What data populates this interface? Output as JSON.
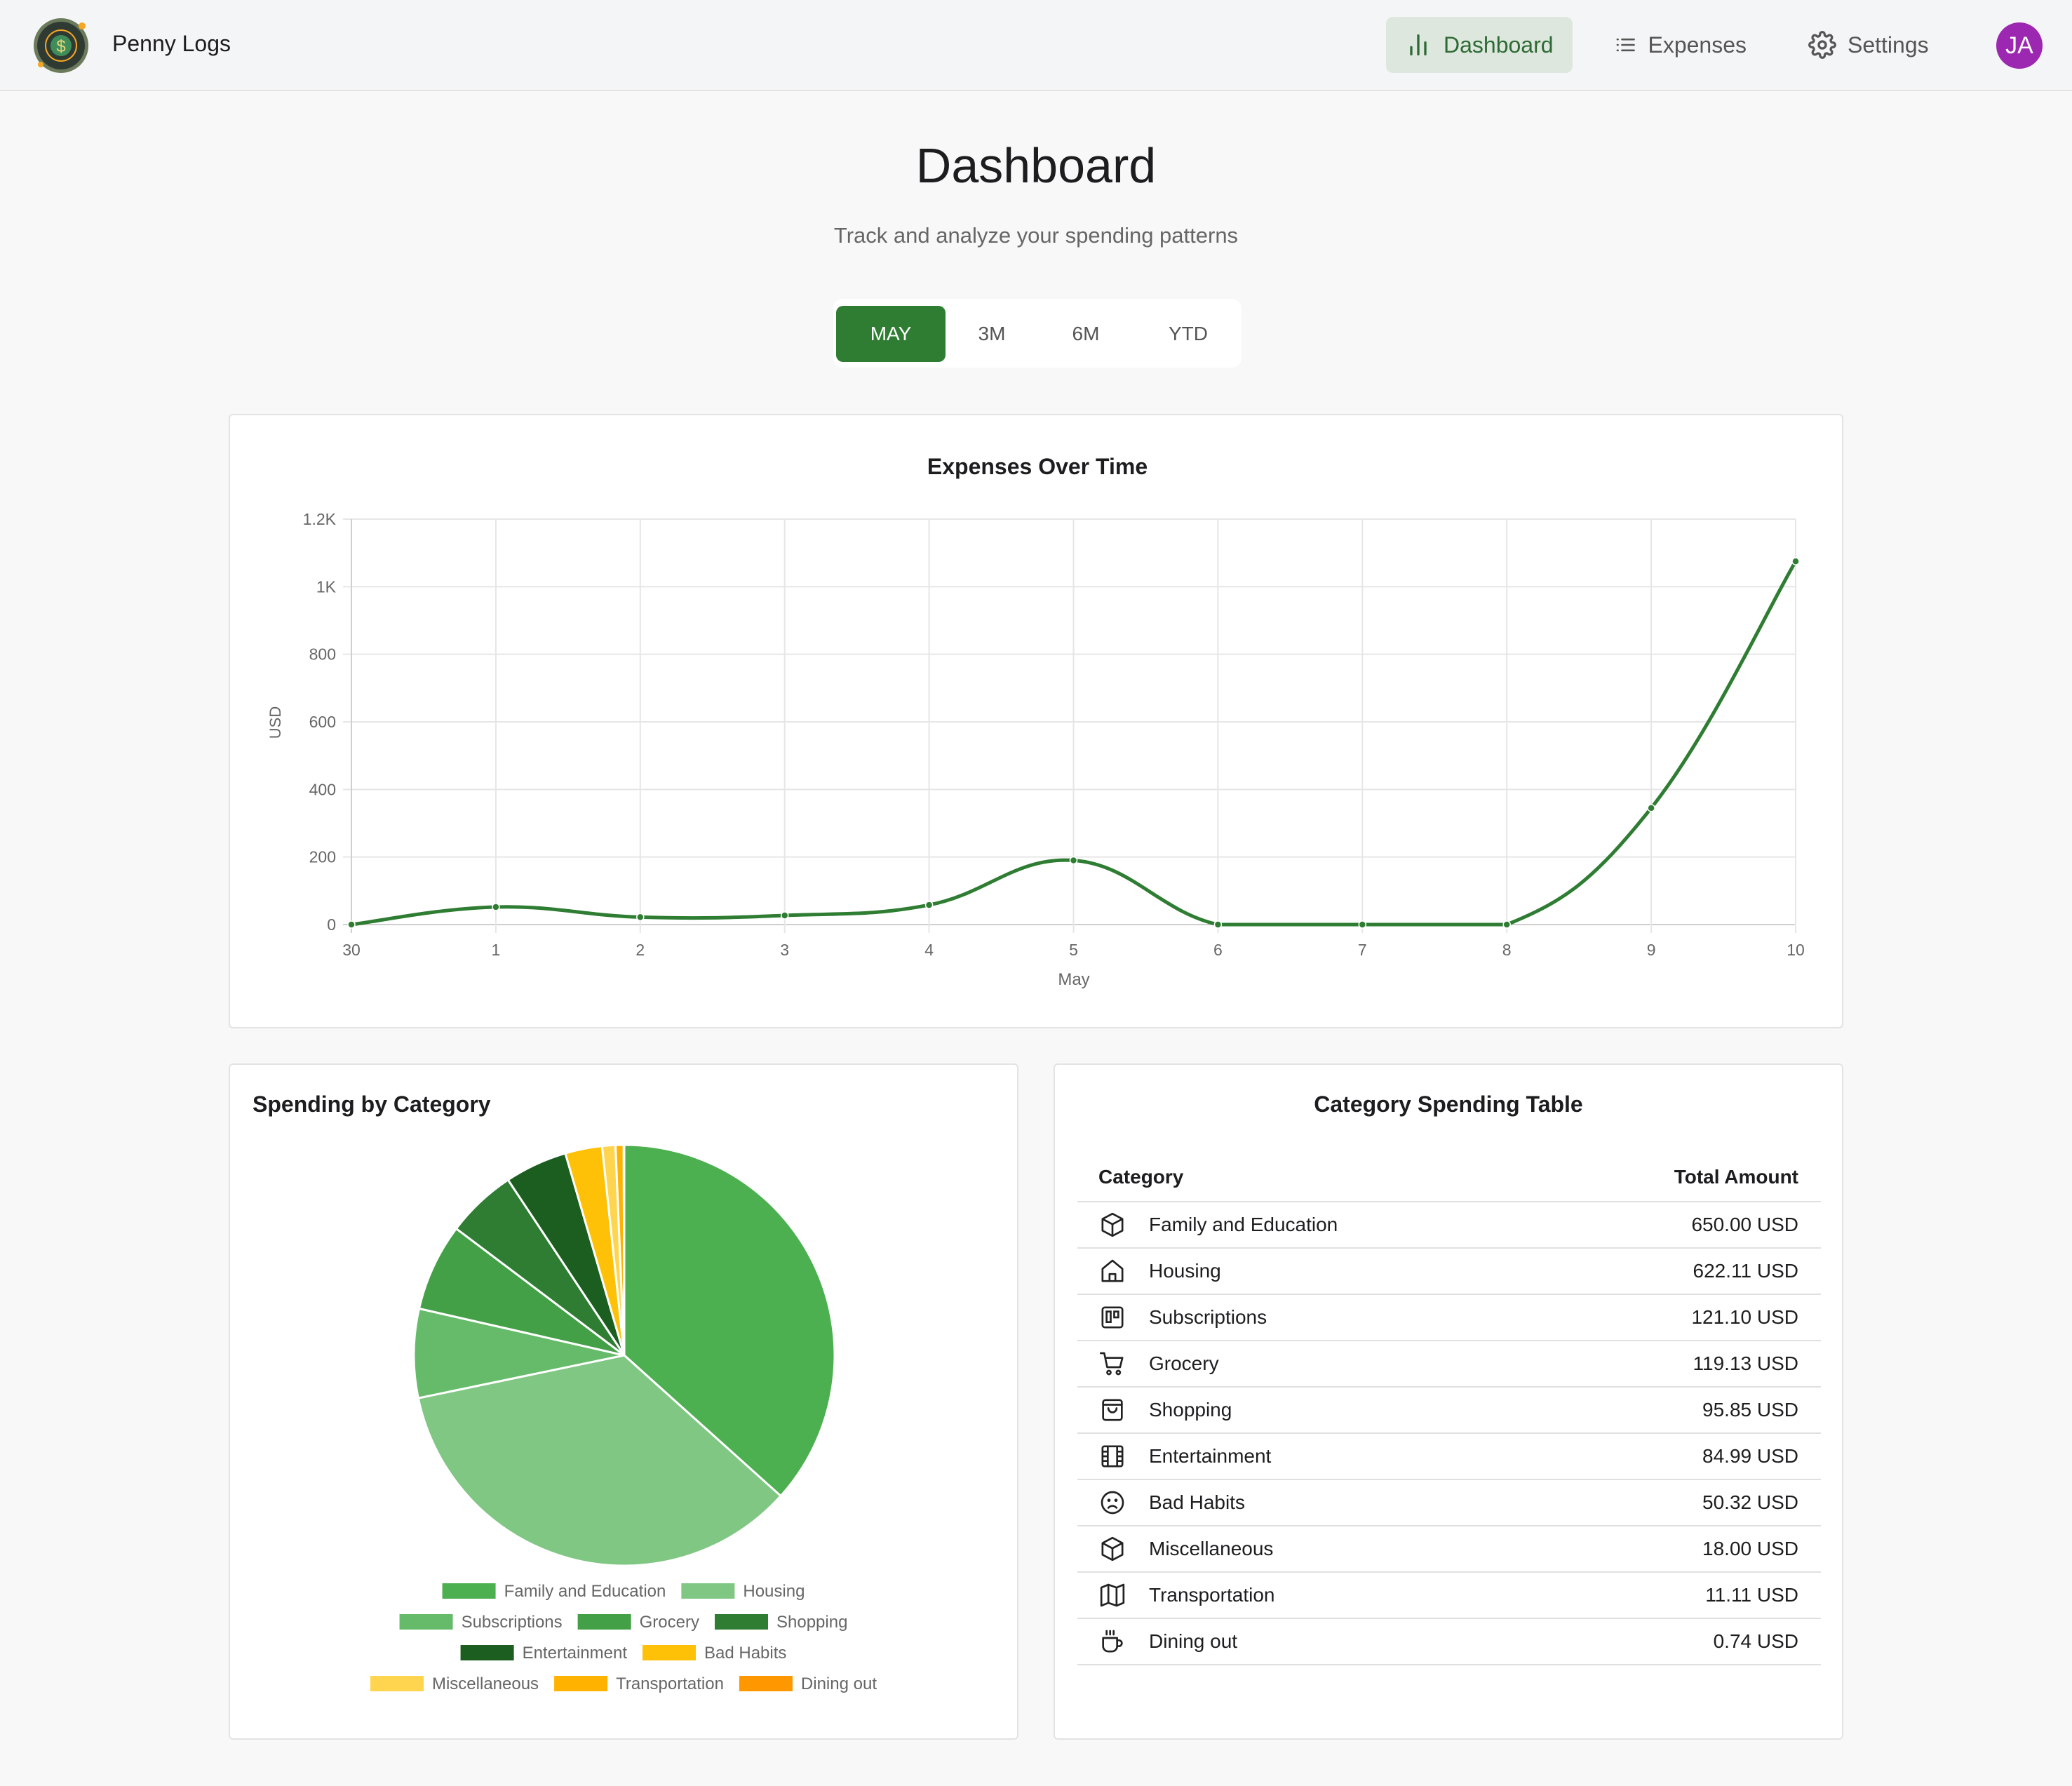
{
  "app": {
    "name": "Penny Logs"
  },
  "nav": [
    {
      "label": "Dashboard",
      "icon": "bar-chart-icon",
      "active": true
    },
    {
      "label": "Expenses",
      "icon": "list-icon",
      "active": false
    },
    {
      "label": "Settings",
      "icon": "gear-icon",
      "active": false
    }
  ],
  "user": {
    "initials": "JA",
    "color": "#9c27b0"
  },
  "page": {
    "title": "Dashboard",
    "subtitle": "Track and analyze your spending patterns"
  },
  "ranges": [
    {
      "label": "MAY",
      "active": true
    },
    {
      "label": "3M",
      "active": false
    },
    {
      "label": "6M",
      "active": false
    },
    {
      "label": "YTD",
      "active": false
    }
  ],
  "line_chart": {
    "title": "Expenses Over Time",
    "chart_data": {
      "type": "line",
      "x": [
        "30",
        "1",
        "2",
        "3",
        "4",
        "5",
        "6",
        "7",
        "8",
        "9",
        "10"
      ],
      "values": [
        0,
        52,
        22,
        27,
        58,
        190,
        0,
        0,
        0,
        345,
        1075
      ],
      "xlabel": "May",
      "ylabel": "USD",
      "ylim": [
        0,
        1200
      ],
      "yticks": [
        0,
        200,
        400,
        600,
        800,
        1000,
        1200
      ],
      "ytick_labels": [
        "0",
        "200",
        "400",
        "600",
        "800",
        "1K",
        "1.2K"
      ],
      "grid": true,
      "color": "#2e7d32"
    }
  },
  "pie_chart": {
    "title": "Spending by Category",
    "chart_data": {
      "type": "pie",
      "categories": [
        "Family and Education",
        "Housing",
        "Subscriptions",
        "Grocery",
        "Shopping",
        "Entertainment",
        "Bad Habits",
        "Miscellaneous",
        "Transportation",
        "Dining out"
      ],
      "values": [
        650.0,
        622.11,
        121.1,
        119.13,
        95.85,
        84.99,
        50.32,
        18.0,
        11.11,
        0.74
      ],
      "colors": [
        "#4caf50",
        "#81c784",
        "#66bb6a",
        "#43a047",
        "#2e7d32",
        "#1b5e20",
        "#ffc107",
        "#ffd54f",
        "#ffb300",
        "#ff9800"
      ],
      "legend": "bottom"
    }
  },
  "table": {
    "title": "Category Spending Table",
    "headers": {
      "category": "Category",
      "amount": "Total Amount"
    },
    "rows": [
      {
        "name": "Family and Education",
        "amount": "650.00 USD",
        "icon": "cube-icon"
      },
      {
        "name": "Housing",
        "amount": "622.11 USD",
        "icon": "house-icon"
      },
      {
        "name": "Subscriptions",
        "amount": "121.10 USD",
        "icon": "kanban-icon"
      },
      {
        "name": "Grocery",
        "amount": "119.13 USD",
        "icon": "cart-icon"
      },
      {
        "name": "Shopping",
        "amount": "95.85 USD",
        "icon": "shopping-bag-icon"
      },
      {
        "name": "Entertainment",
        "amount": "84.99 USD",
        "icon": "film-icon"
      },
      {
        "name": "Bad Habits",
        "amount": "50.32 USD",
        "icon": "sad-face-icon"
      },
      {
        "name": "Miscellaneous",
        "amount": "18.00 USD",
        "icon": "cube-icon"
      },
      {
        "name": "Transportation",
        "amount": "11.11 USD",
        "icon": "map-icon"
      },
      {
        "name": "Dining out",
        "amount": "0.74 USD",
        "icon": "coffee-icon"
      }
    ]
  }
}
